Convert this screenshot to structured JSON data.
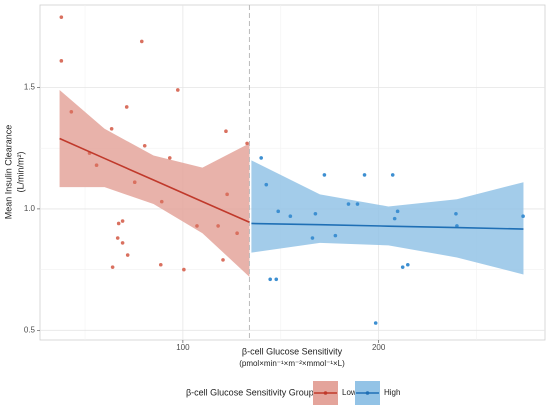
{
  "chart_data": {
    "type": "scatter",
    "x_label": [
      "β-cell Glucose Sensitivity",
      "(pmol×min⁻¹×m⁻²×mmol⁻¹×L)"
    ],
    "y_label": [
      "Mean Insulin Clearance",
      "(L/min/m²)"
    ],
    "legend_title": "β-cell Glucose Sensitivity Group",
    "legend": "bottom",
    "grid": true,
    "xlim": [
      27,
      285
    ],
    "ylim": [
      0.46,
      1.84
    ],
    "xticks": [
      100,
      200
    ],
    "minor_xticks": [
      50,
      150,
      250
    ],
    "yticks": [
      0.5,
      {
        "value": 1.0,
        "label": "1.0"
      },
      1.5
    ],
    "minor_yticks": [
      0.75,
      1.25
    ],
    "vline": 134,
    "series": [
      {
        "name": "Low",
        "color": "#c0392b",
        "point_color": "#d9705f",
        "band_color": "#e4a49b",
        "x": [
          37.9,
          37.9,
          43,
          52.3,
          55.9,
          63.6,
          71.3,
          79,
          80.5,
          75.4,
          97.4,
          93.3,
          89.2,
          69.2,
          67.2,
          66.7,
          69.2,
          71.8,
          64.1,
          88.7,
          100.5,
          107.2,
          118,
          122,
          122.6,
          120.5,
          127.7,
          132.8
        ],
        "values": [
          1.79,
          1.61,
          1.4,
          1.23,
          1.18,
          1.33,
          1.42,
          1.69,
          1.26,
          1.11,
          1.49,
          1.21,
          1.03,
          0.95,
          0.94,
          0.88,
          0.86,
          0.81,
          0.76,
          0.77,
          0.75,
          0.93,
          0.93,
          1.32,
          1.06,
          0.79,
          0.9,
          1.27
        ],
        "fit": {
          "x": [
            37,
            60,
            85,
            110,
            134
          ],
          "values": [
            1.29,
            1.208,
            1.119,
            1.03,
            0.945
          ],
          "lower": [
            1.09,
            1.09,
            1.02,
            0.9,
            0.72
          ],
          "upper": [
            1.49,
            1.33,
            1.22,
            1.17,
            1.27
          ]
        }
      },
      {
        "name": "High",
        "color": "#1f6fb5",
        "point_color": "#3d8fd1",
        "band_color": "#93c3e6",
        "x": [
          140,
          142.6,
          148.7,
          154.9,
          144.6,
          147.7,
          167.7,
          166.2,
          172.3,
          177.9,
          184.6,
          189.2,
          192.8,
          207.2,
          209.7,
          208.2,
          198.5,
          212.3,
          214.9,
          239.5,
          240,
          273.8
        ],
        "values": [
          1.21,
          1.1,
          0.99,
          0.97,
          0.71,
          0.71,
          0.98,
          0.88,
          1.14,
          0.89,
          1.02,
          1.02,
          1.14,
          1.14,
          0.99,
          0.96,
          0.53,
          0.76,
          0.77,
          0.98,
          0.93,
          0.97
        ],
        "fit": {
          "x": [
            135,
            170,
            205,
            240,
            274
          ],
          "values": [
            0.94,
            0.935,
            0.929,
            0.923,
            0.917
          ],
          "lower": [
            0.82,
            0.86,
            0.85,
            0.8,
            0.73
          ],
          "upper": [
            1.2,
            1.06,
            1.01,
            1.04,
            1.11
          ]
        }
      }
    ]
  }
}
